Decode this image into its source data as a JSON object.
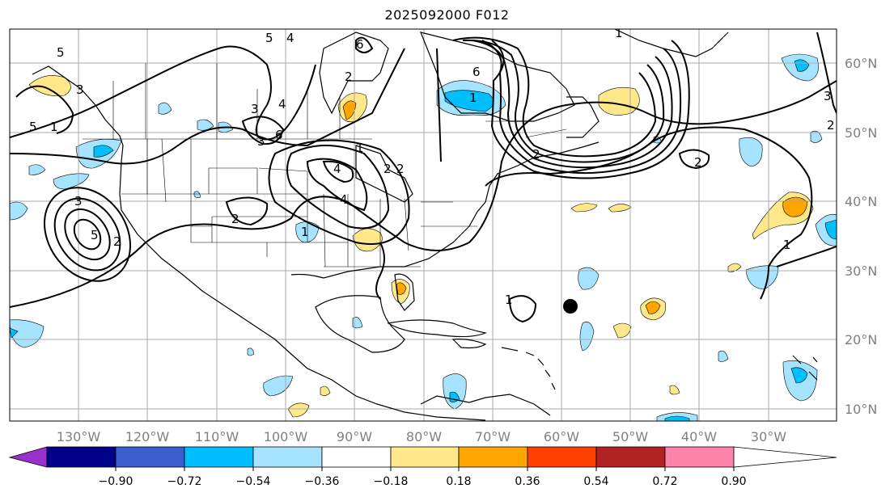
{
  "title": "2025092000 F012",
  "longitude_labels": [
    "130°W",
    "120°W",
    "110°W",
    "100°W",
    "90°W",
    "80°W",
    "70°W",
    "60°W",
    "50°W",
    "40°W",
    "30°W"
  ],
  "latitude_labels": [
    "60°N",
    "50°N",
    "40°N",
    "30°N",
    "20°N",
    "10°N"
  ],
  "colorbar": {
    "tick_labels": [
      "−0.90",
      "−0.72",
      "−0.54",
      "−0.36",
      "−0.18",
      "0.18",
      "0.36",
      "0.54",
      "0.72",
      "0.90"
    ],
    "colors": [
      "#9932cc",
      "#00008b",
      "#3a5fcd",
      "#00bfff",
      "#a6e3ff",
      "#ffffff",
      "#ffe88a",
      "#ffa500",
      "#ff4000",
      "#b22222",
      "#ff82ab"
    ]
  },
  "contour_labels": [
    "5",
    "4",
    "6",
    "5",
    "2",
    "3",
    "4",
    "1",
    "6",
    "5",
    "1",
    "2",
    "3",
    "4",
    "1",
    "2",
    "3",
    "2",
    "1",
    "6",
    "3",
    "4",
    "1",
    "2",
    "5",
    "1",
    "2",
    "2",
    "1",
    "3",
    "2"
  ],
  "marker": "storm-center-dot"
}
